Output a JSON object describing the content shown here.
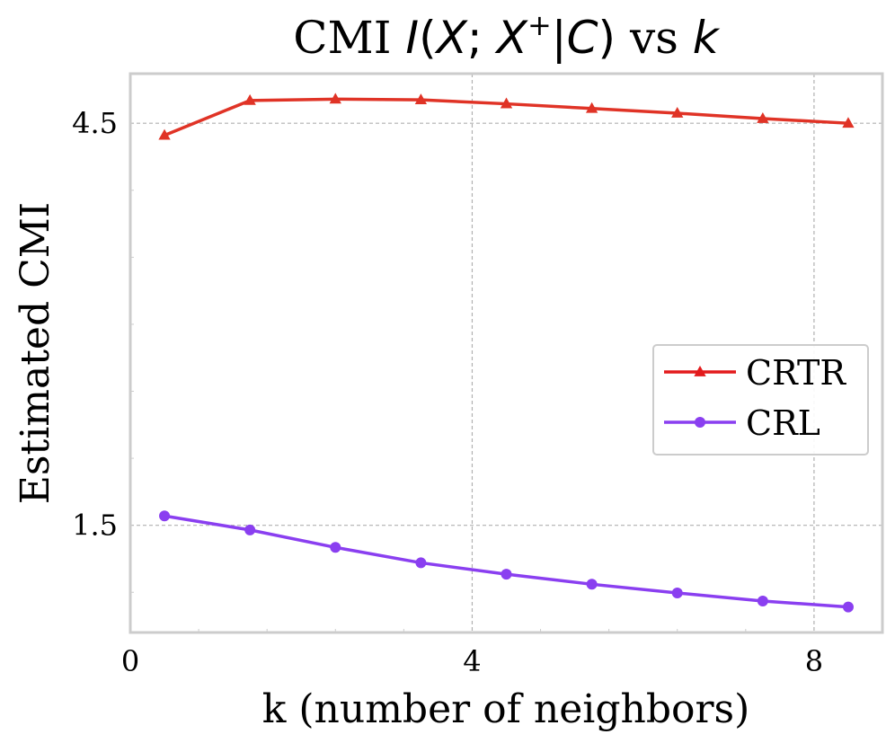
{
  "chart_data": {
    "type": "line",
    "title": {
      "prefix": "CMI ",
      "math_a": "I",
      "paren_open": "(",
      "math_b": "X",
      "semi": "; ",
      "math_c": "X",
      "sup": "+",
      "bar": "|",
      "math_d": "C",
      "paren_close": ")",
      "middle": " vs ",
      "math_e": "k"
    },
    "xlabel": "k (number of neighbors)",
    "ylabel": "Estimated CMI",
    "xlim": [
      0,
      8.8
    ],
    "ylim": [
      0.7,
      4.87
    ],
    "x_ticks": [
      0,
      4,
      8
    ],
    "x_tick_labels": [
      "0",
      "4",
      "8"
    ],
    "y_ticks": [
      1.5,
      4.5
    ],
    "y_tick_labels": [
      "1.5",
      "4.5"
    ],
    "grid": true,
    "legend_position": "center-right",
    "x": [
      0.4,
      1.4,
      2.4,
      3.4,
      4.4,
      5.4,
      6.4,
      7.4,
      8.4
    ],
    "series": [
      {
        "name": "CRTR",
        "color": "#e03326",
        "legend_color": "#e31a1c",
        "marker": "triangle",
        "values": [
          4.41,
          4.67,
          4.68,
          4.675,
          4.645,
          4.61,
          4.575,
          4.535,
          4.5
        ]
      },
      {
        "name": "CRL",
        "color": "#8a3ff0",
        "legend_color": "#8a3ff0",
        "marker": "circle",
        "values": [
          1.57,
          1.465,
          1.335,
          1.22,
          1.135,
          1.06,
          0.995,
          0.935,
          0.89
        ]
      }
    ]
  }
}
